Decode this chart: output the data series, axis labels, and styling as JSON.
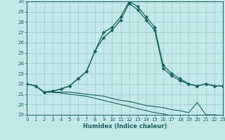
{
  "background_color": "#c2e8e8",
  "grid_color": "#a0cccc",
  "line_color": "#1a6060",
  "xlabel": "Humidex (Indice chaleur)",
  "xlim": [
    0,
    23
  ],
  "ylim": [
    19,
    30
  ],
  "xticks": [
    0,
    1,
    2,
    3,
    4,
    5,
    6,
    7,
    8,
    9,
    10,
    11,
    12,
    13,
    14,
    15,
    16,
    17,
    18,
    19,
    20,
    21,
    22,
    23
  ],
  "yticks": [
    19,
    20,
    21,
    22,
    23,
    24,
    25,
    26,
    27,
    28,
    29,
    30
  ],
  "curve_x": [
    0,
    1,
    2,
    3,
    4,
    5,
    6,
    7,
    8,
    9,
    10,
    11,
    12,
    13,
    14,
    15,
    16,
    17,
    18,
    19,
    20,
    21,
    22,
    23
  ],
  "curve1_y": [
    22.0,
    21.8,
    21.2,
    21.3,
    21.5,
    21.8,
    22.5,
    23.2,
    25.2,
    27.0,
    27.5,
    28.5,
    30.0,
    29.5,
    28.5,
    27.5,
    23.8,
    23.0,
    22.5,
    22.0,
    21.8,
    22.0,
    21.8,
    21.8
  ],
  "curve2_y": [
    22.0,
    21.8,
    21.2,
    21.3,
    21.5,
    21.8,
    22.5,
    23.2,
    25.2,
    26.5,
    27.2,
    28.2,
    29.8,
    29.2,
    28.2,
    27.2,
    23.5,
    22.8,
    22.3,
    22.0,
    21.8,
    22.0,
    21.8,
    21.8
  ],
  "flat1_x": [
    0,
    1,
    2,
    3,
    4,
    5,
    6,
    7,
    8,
    9,
    10,
    11,
    12,
    13,
    14,
    15,
    16,
    17,
    18,
    19,
    20,
    21,
    22,
    23
  ],
  "flat1_y": [
    22.0,
    21.8,
    21.2,
    21.2,
    21.2,
    21.2,
    21.1,
    21.0,
    20.9,
    20.8,
    20.6,
    20.4,
    20.3,
    20.1,
    19.9,
    19.8,
    19.7,
    19.5,
    19.4,
    19.2,
    20.2,
    19.0,
    19.0,
    18.9
  ],
  "flat2_y": [
    22.0,
    21.8,
    21.2,
    21.2,
    21.1,
    21.0,
    20.9,
    20.8,
    20.6,
    20.4,
    20.2,
    20.0,
    19.8,
    19.6,
    19.4,
    19.2,
    19.1,
    18.9,
    18.8,
    18.7,
    18.8,
    18.9,
    18.9,
    18.8
  ]
}
